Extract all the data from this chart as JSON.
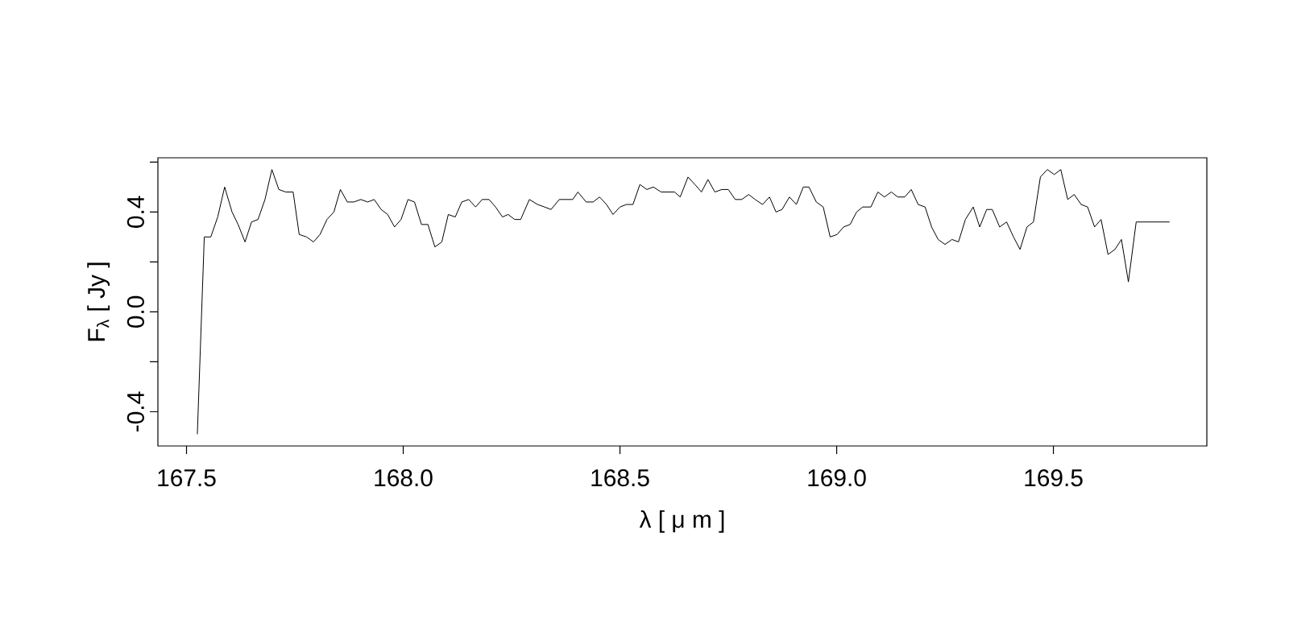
{
  "chart_data": {
    "type": "line",
    "xlabel": "λ [ μ m ]",
    "ylabel": "F$_{λ}$ [ Jy ]",
    "color": "#000000",
    "xlim": [
      167.434,
      169.854
    ],
    "ylim": [
      -0.537,
      0.617
    ],
    "xticks": [
      167.5,
      {
        "value": 168,
        "label": "168.0"
      },
      168.5,
      {
        "value": 169,
        "label": "169.0"
      },
      169.5
    ],
    "yticks": [
      {
        "value": -0.4,
        "label": "-0.4"
      },
      {
        "value": -0.2,
        "label": null
      },
      {
        "value": 0,
        "label": "0.0"
      },
      {
        "value": 0.2,
        "label": null
      },
      {
        "value": 0.4,
        "label": "0.4"
      },
      {
        "value": 0.6,
        "label": null
      }
    ],
    "x": [
      167.525,
      167.541,
      167.556,
      167.572,
      167.588,
      167.605,
      167.619,
      167.635,
      167.65,
      167.665,
      167.681,
      167.697,
      167.713,
      167.729,
      167.746,
      167.76,
      167.777,
      167.793,
      167.808,
      167.824,
      167.84,
      167.855,
      167.871,
      167.886,
      167.902,
      167.918,
      167.933,
      167.949,
      167.964,
      167.98,
      167.995,
      168.011,
      168.026,
      168.042,
      168.057,
      168.073,
      168.089,
      168.104,
      168.12,
      168.135,
      168.151,
      168.167,
      168.182,
      168.198,
      168.213,
      168.229,
      168.242,
      168.257,
      168.271,
      168.291,
      168.31,
      168.326,
      168.341,
      168.36,
      168.376,
      168.391,
      168.403,
      168.422,
      168.438,
      168.453,
      168.469,
      168.484,
      168.5,
      168.515,
      168.53,
      168.546,
      168.562,
      168.577,
      168.595,
      168.611,
      168.626,
      168.639,
      168.657,
      168.673,
      168.688,
      168.703,
      168.719,
      168.735,
      168.75,
      168.766,
      168.781,
      168.797,
      168.812,
      168.829,
      168.845,
      168.86,
      168.874,
      168.891,
      168.907,
      168.923,
      168.936,
      168.953,
      168.969,
      168.985,
      169.001,
      169.016,
      169.031,
      169.046,
      169.06,
      169.079,
      169.095,
      169.11,
      169.126,
      169.141,
      169.157,
      169.172,
      169.188,
      169.204,
      169.219,
      169.234,
      169.25,
      169.266,
      169.281,
      169.297,
      169.315,
      169.33,
      169.346,
      169.359,
      169.376,
      169.392,
      169.408,
      169.423,
      169.439,
      169.454,
      169.47,
      169.486,
      169.502,
      169.517,
      169.533,
      169.548,
      169.564,
      169.579,
      169.595,
      169.61,
      169.626,
      169.642,
      169.657,
      169.673,
      169.691,
      169.768
    ],
    "values": [
      -0.49,
      0.3,
      0.3,
      0.38,
      0.5,
      0.4,
      0.35,
      0.28,
      0.36,
      0.37,
      0.45,
      0.57,
      0.49,
      0.48,
      0.48,
      0.31,
      0.3,
      0.28,
      0.31,
      0.37,
      0.4,
      0.49,
      0.44,
      0.44,
      0.45,
      0.44,
      0.45,
      0.41,
      0.39,
      0.34,
      0.37,
      0.45,
      0.44,
      0.35,
      0.35,
      0.26,
      0.28,
      0.39,
      0.38,
      0.44,
      0.45,
      0.42,
      0.45,
      0.45,
      0.42,
      0.38,
      0.39,
      0.37,
      0.37,
      0.45,
      0.43,
      0.42,
      0.41,
      0.45,
      0.45,
      0.45,
      0.48,
      0.44,
      0.44,
      0.46,
      0.43,
      0.39,
      0.42,
      0.43,
      0.43,
      0.51,
      0.49,
      0.5,
      0.48,
      0.48,
      0.48,
      0.46,
      0.54,
      0.51,
      0.48,
      0.53,
      0.48,
      0.49,
      0.49,
      0.45,
      0.45,
      0.47,
      0.45,
      0.43,
      0.46,
      0.4,
      0.41,
      0.46,
      0.43,
      0.5,
      0.5,
      0.44,
      0.42,
      0.3,
      0.31,
      0.34,
      0.35,
      0.4,
      0.42,
      0.42,
      0.48,
      0.46,
      0.48,
      0.46,
      0.46,
      0.49,
      0.43,
      0.42,
      0.34,
      0.29,
      0.27,
      0.29,
      0.28,
      0.37,
      0.42,
      0.34,
      0.41,
      0.41,
      0.34,
      0.36,
      0.3,
      0.25,
      0.34,
      0.36,
      0.54,
      0.57,
      0.55,
      0.57,
      0.45,
      0.47,
      0.43,
      0.42,
      0.34,
      0.37,
      0.23,
      0.25,
      0.29,
      0.12,
      0.36,
      0.36
    ]
  }
}
